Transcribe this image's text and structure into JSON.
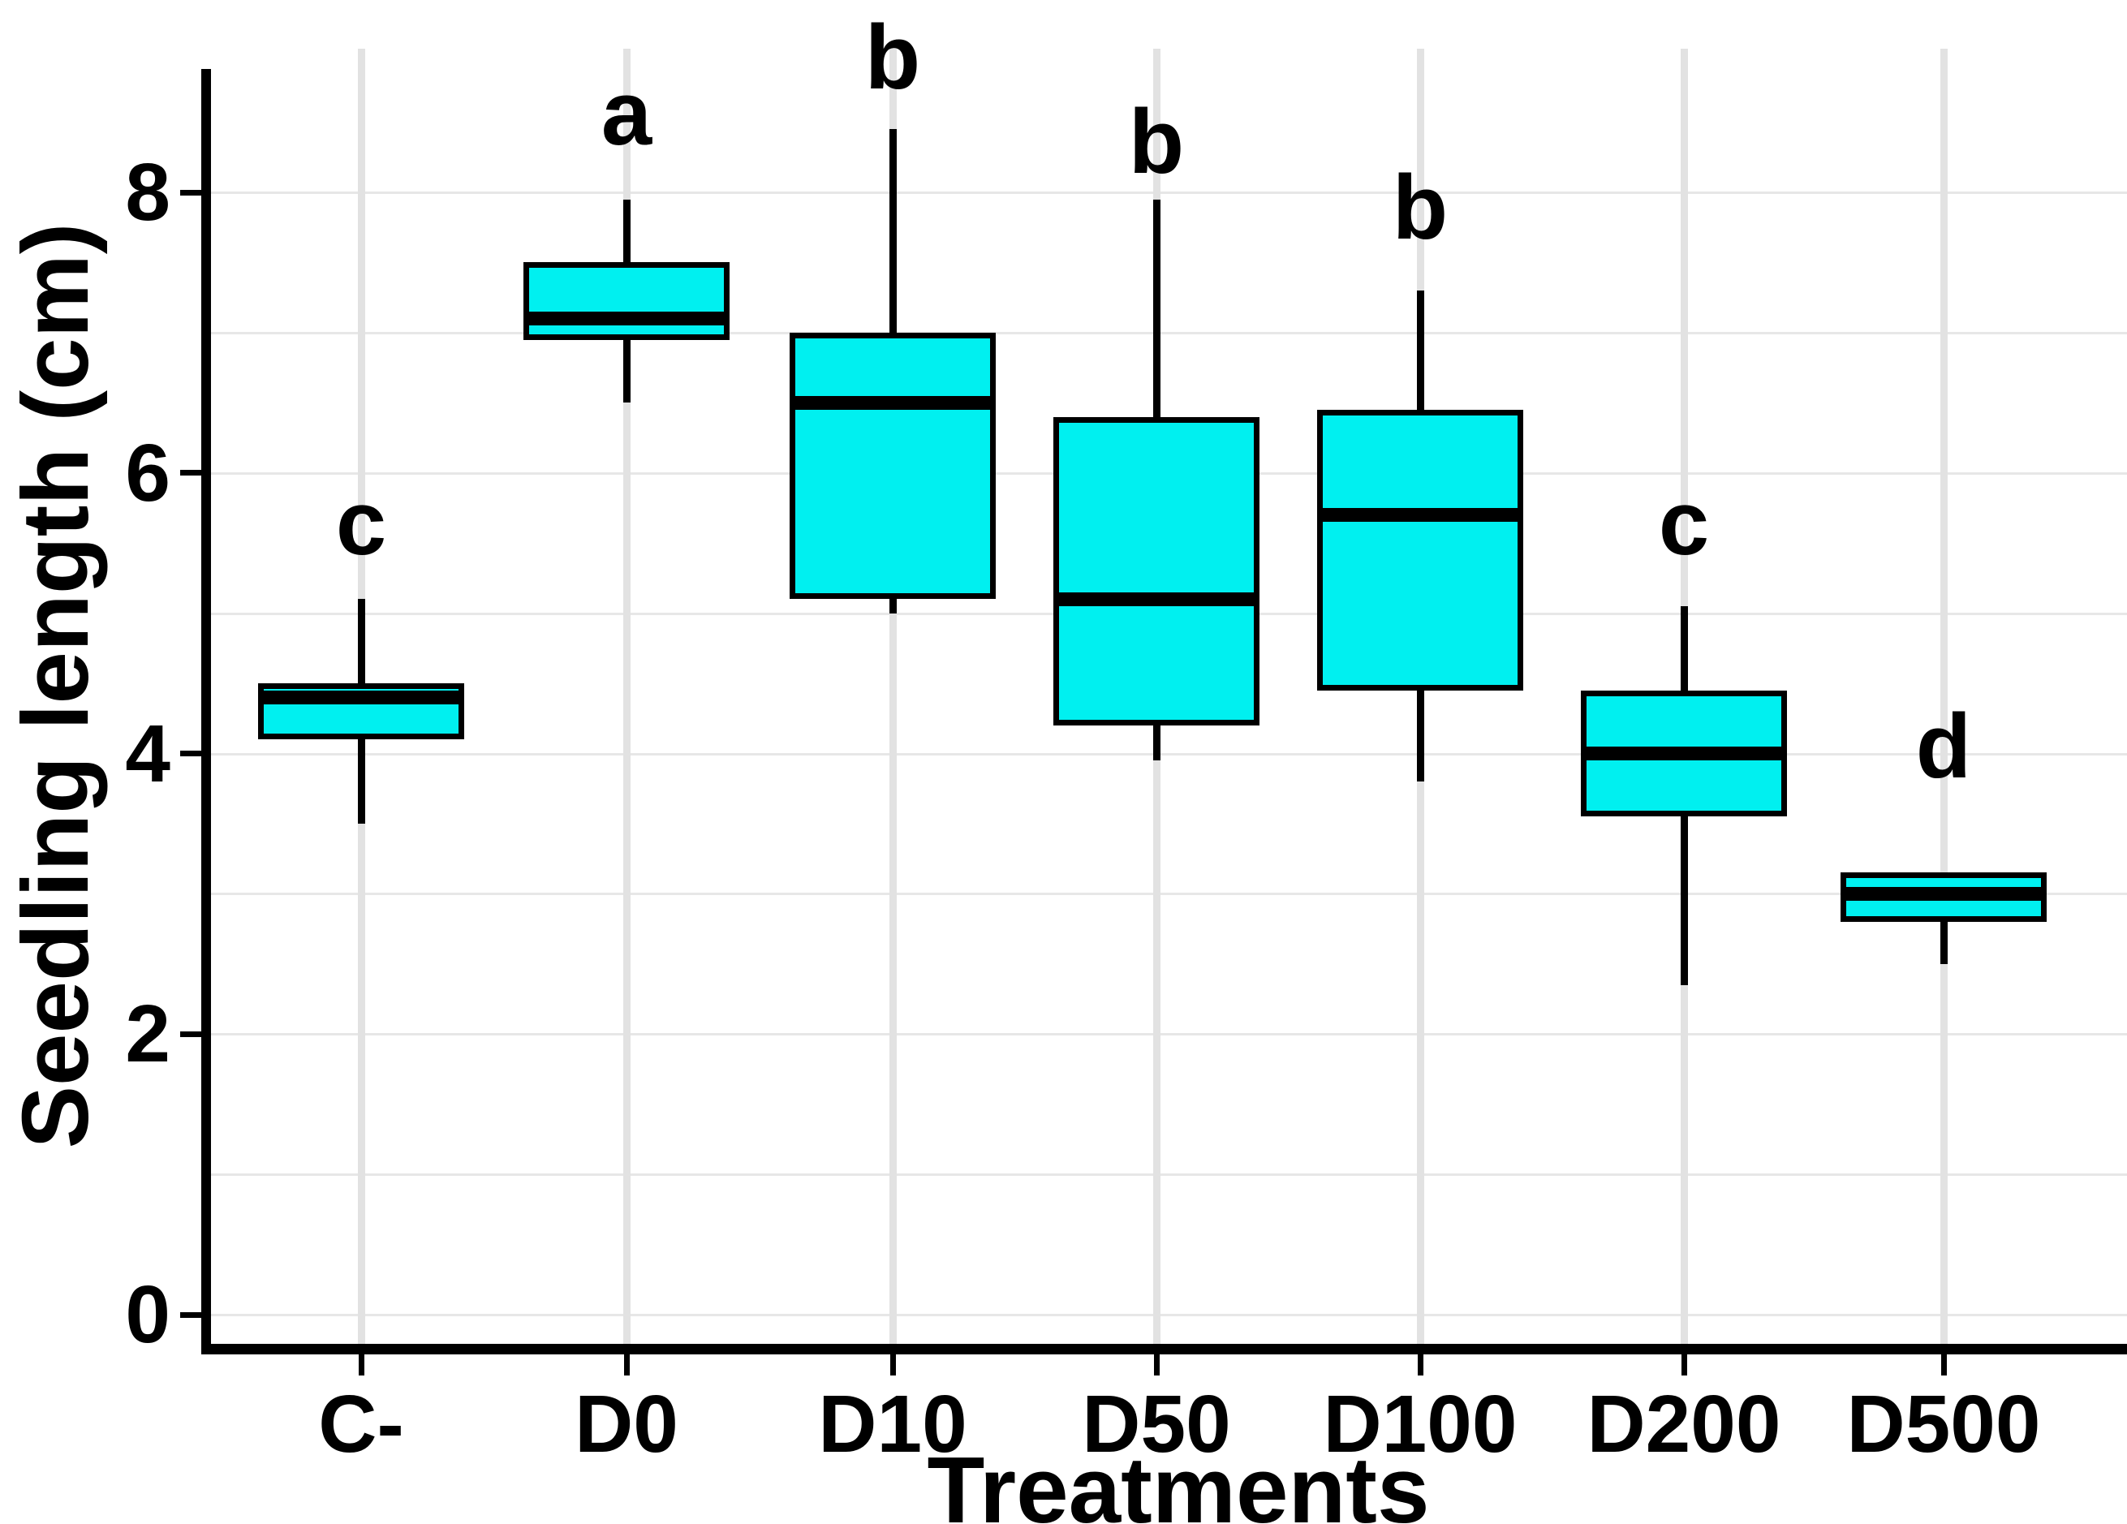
{
  "chart_data": {
    "type": "box",
    "title": "",
    "xlabel": "Treatments",
    "ylabel": "Seedling length (cm)",
    "ylim": [
      0,
      9.0
    ],
    "yticks": [
      "0",
      "2",
      "4",
      "6",
      "8"
    ],
    "ytick_values": [
      0,
      2,
      4,
      6,
      8
    ],
    "ygridlines": [
      0,
      1,
      2,
      3,
      4,
      5,
      6,
      7,
      8
    ],
    "grid": "on",
    "legend": "none",
    "categories": [
      "C-",
      "D0",
      "D10",
      "D50",
      "D100",
      "D200",
      "D500"
    ],
    "series": [
      {
        "category": "C-",
        "min": 3.5,
        "q1": 4.1,
        "median": 4.4,
        "q3": 4.5,
        "max": 5.1,
        "sig_letter": "c",
        "letter_y": 5.64
      },
      {
        "category": "D0",
        "min": 6.5,
        "q1": 6.95,
        "median": 7.1,
        "q3": 7.5,
        "max": 7.95,
        "sig_letter": "a",
        "letter_y": 8.56
      },
      {
        "category": "D10",
        "min": 5.0,
        "q1": 5.1,
        "median": 6.5,
        "q3": 7.0,
        "max": 8.45,
        "sig_letter": "b",
        "letter_y": 8.96
      },
      {
        "category": "D50",
        "min": 3.95,
        "q1": 4.2,
        "median": 5.1,
        "q3": 6.4,
        "max": 7.95,
        "sig_letter": "b",
        "letter_y": 8.36
      },
      {
        "category": "D100",
        "min": 3.8,
        "q1": 4.45,
        "median": 5.7,
        "q3": 6.45,
        "max": 7.3,
        "sig_letter": "b",
        "letter_y": 7.89
      },
      {
        "category": "D200",
        "min": 2.35,
        "q1": 3.55,
        "median": 4.0,
        "q3": 4.45,
        "max": 5.05,
        "sig_letter": "c",
        "letter_y": 5.64
      },
      {
        "category": "D500",
        "min": 2.5,
        "q1": 2.8,
        "median": 3.0,
        "q3": 3.15,
        "max": 3.15,
        "sig_letter": "d",
        "letter_y": 4.05
      }
    ]
  },
  "colors": {
    "background": "#FFFFFF",
    "box_fill": "#00F0F0",
    "box_border": "#000000",
    "median": "#000000",
    "whisker": "#000000",
    "axis": "#000000",
    "text": "#000000",
    "grid_horizontal": "#E7E7E7",
    "grid_vertical": "#E2E2E2"
  }
}
